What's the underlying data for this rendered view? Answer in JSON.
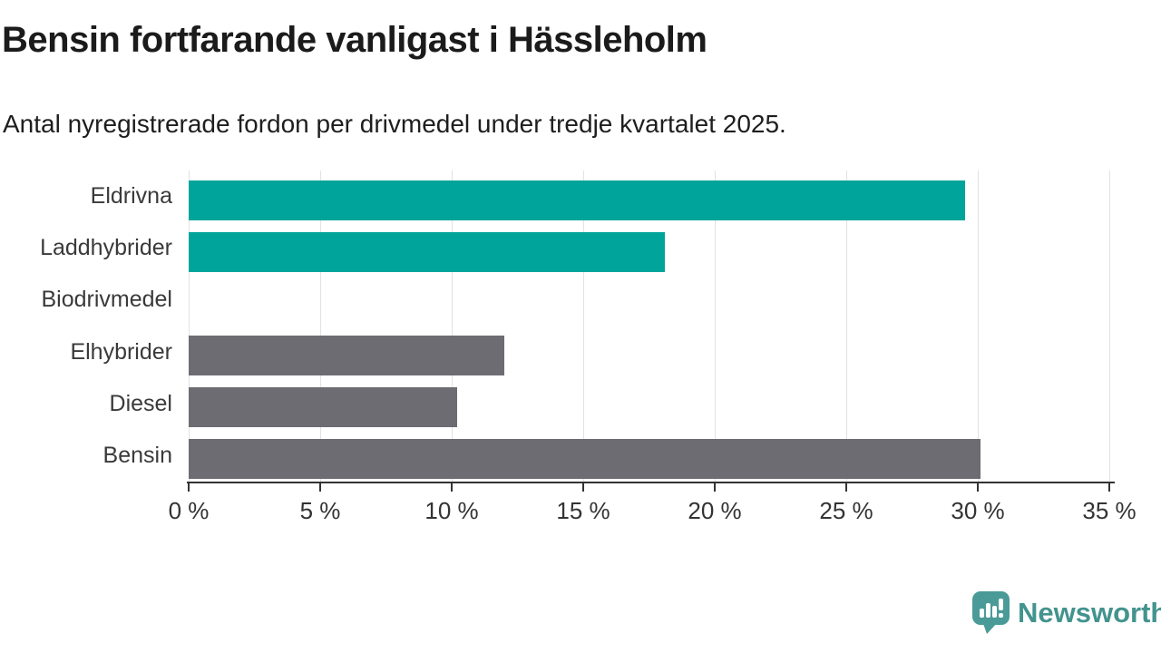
{
  "header": {
    "title": "Bensin fortfarande vanligast i Hässleholm",
    "subtitle": "Antal nyregistrerade fordon per drivmedel under tredje kvartalet 2025."
  },
  "chart_data": {
    "type": "bar",
    "orientation": "horizontal",
    "title": "Bensin fortfarande vanligast i Hässleholm",
    "subtitle": "Antal nyregistrerade fordon per drivmedel under tredje kvartalet 2025.",
    "categories": [
      "Eldrivna",
      "Laddhybrider",
      "Biodrivmedel",
      "Elhybrider",
      "Diesel",
      "Bensin"
    ],
    "values": [
      29.5,
      18.1,
      0,
      12.0,
      10.2,
      30.1
    ],
    "unit": "%",
    "bar_colors": [
      "#00a49a",
      "#00a49a",
      "#6c6c72",
      "#6c6c72",
      "#6c6c72",
      "#6c6c72"
    ],
    "highlight_color": "#00a49a",
    "default_color": "#6c6c72",
    "xlim": [
      0,
      35
    ],
    "x_ticks": [
      0,
      5,
      10,
      15,
      20,
      25,
      30,
      35
    ],
    "x_tick_labels": [
      "0 %",
      "5 %",
      "10 %",
      "15 %",
      "20 %",
      "25 %",
      "30 %",
      "35 %"
    ],
    "grid": "vertical",
    "legend": "none"
  },
  "footer": {
    "brand": "Newsworthy",
    "brand_color": "#43938e",
    "logo_icon": "newsworthy-speech-bubble-chart-icon"
  }
}
